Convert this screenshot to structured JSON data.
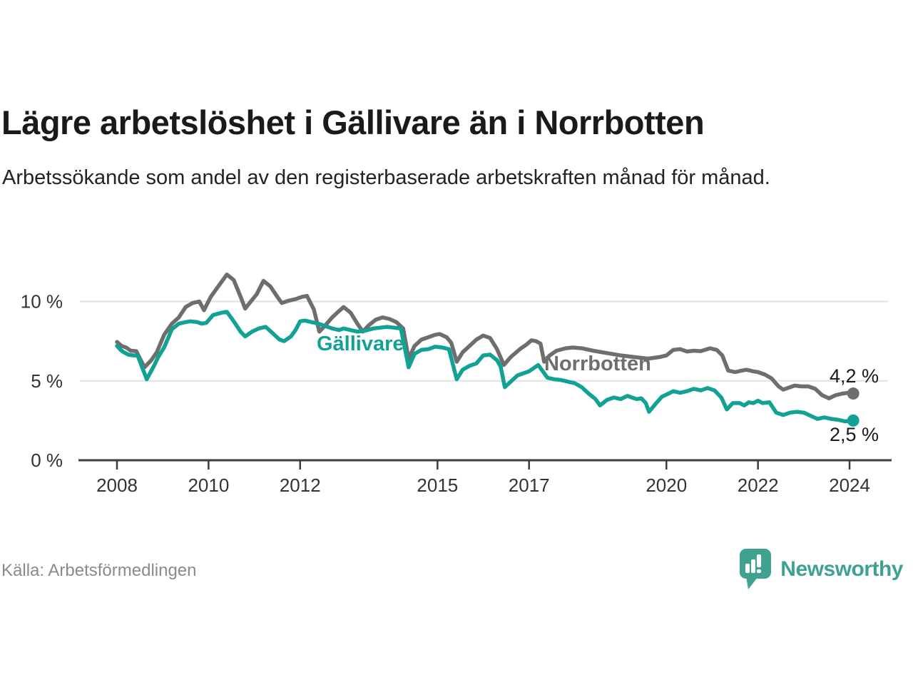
{
  "header": {
    "title": "Lägre arbetslöshet i Gällivare än i Norrbotten",
    "subtitle": "Arbetssökande som andel av den registerbaserade arbetskraften månad för månad."
  },
  "footer": {
    "source": "Källa: Arbetsförmedlingen",
    "brand_name": "Newsworthy",
    "brand_logo_icon": "speech-bubble-bar-chart-icon"
  },
  "colors": {
    "gallivare_line": "#12a195",
    "norrbotten_line": "#6e6e6e",
    "gridline": "#e1e1e1",
    "axis": "#3d3d3d",
    "tick_text": "#333333",
    "end_label_text": "#1a1a1a",
    "source_text": "#8a8a8a",
    "brand_teal": "#3fa291"
  },
  "chart_data": {
    "type": "line",
    "unit": "%",
    "grid": "horizontal-only",
    "legend_position": "inline-labels-on-lines",
    "x_axis": {
      "range": [
        2007.85,
        2024.95
      ],
      "ticks": [
        2008,
        2010,
        2012,
        2015,
        2017,
        2020,
        2022,
        2024
      ],
      "tick_labels": [
        "2008",
        "2010",
        "2012",
        "2015",
        "2017",
        "2020",
        "2022",
        "2024"
      ]
    },
    "y_axis": {
      "range": [
        0,
        11.9
      ],
      "ticks": [
        {
          "value": 0,
          "label": "0 %"
        },
        {
          "value": 5,
          "label": "5 %"
        },
        {
          "value": 10,
          "label": "10 %"
        }
      ]
    },
    "series": [
      {
        "name": "Norrbotten",
        "label_text": "Norrbotten",
        "end_label": "4,2 %",
        "end_value": 4.2,
        "color": "#6e6e6e",
        "points": [
          [
            2008.0,
            7.45
          ],
          [
            2008.1,
            7.2
          ],
          [
            2008.2,
            7.1
          ],
          [
            2008.3,
            6.9
          ],
          [
            2008.42,
            6.87
          ],
          [
            2008.6,
            5.85
          ],
          [
            2008.75,
            6.3
          ],
          [
            2008.87,
            6.8
          ],
          [
            2009.03,
            7.9
          ],
          [
            2009.2,
            8.6
          ],
          [
            2009.35,
            9.0
          ],
          [
            2009.5,
            9.65
          ],
          [
            2009.65,
            9.9
          ],
          [
            2009.8,
            10.0
          ],
          [
            2009.9,
            9.45
          ],
          [
            2010.05,
            10.3
          ],
          [
            2010.25,
            11.1
          ],
          [
            2010.4,
            11.7
          ],
          [
            2010.55,
            11.35
          ],
          [
            2010.7,
            10.3
          ],
          [
            2010.8,
            9.55
          ],
          [
            2010.95,
            10.1
          ],
          [
            2011.05,
            10.45
          ],
          [
            2011.2,
            11.3
          ],
          [
            2011.35,
            10.95
          ],
          [
            2011.5,
            10.3
          ],
          [
            2011.6,
            9.9
          ],
          [
            2011.75,
            10.05
          ],
          [
            2011.9,
            10.15
          ],
          [
            2012.05,
            10.3
          ],
          [
            2012.15,
            10.35
          ],
          [
            2012.3,
            9.5
          ],
          [
            2012.42,
            8.1
          ],
          [
            2012.55,
            8.5
          ],
          [
            2012.7,
            9.0
          ],
          [
            2012.85,
            9.4
          ],
          [
            2012.95,
            9.65
          ],
          [
            2013.1,
            9.3
          ],
          [
            2013.25,
            8.6
          ],
          [
            2013.37,
            8.1
          ],
          [
            2013.5,
            8.5
          ],
          [
            2013.65,
            8.85
          ],
          [
            2013.8,
            9.0
          ],
          [
            2013.95,
            8.9
          ],
          [
            2014.1,
            8.7
          ],
          [
            2014.25,
            8.3
          ],
          [
            2014.37,
            6.4
          ],
          [
            2014.5,
            7.2
          ],
          [
            2014.65,
            7.6
          ],
          [
            2014.8,
            7.75
          ],
          [
            2014.95,
            7.9
          ],
          [
            2015.05,
            7.95
          ],
          [
            2015.2,
            7.75
          ],
          [
            2015.3,
            7.4
          ],
          [
            2015.42,
            6.2
          ],
          [
            2015.55,
            6.8
          ],
          [
            2015.7,
            7.2
          ],
          [
            2015.85,
            7.6
          ],
          [
            2016.0,
            7.85
          ],
          [
            2016.15,
            7.7
          ],
          [
            2016.3,
            7.0
          ],
          [
            2016.45,
            6.0
          ],
          [
            2016.6,
            6.5
          ],
          [
            2016.8,
            7.0
          ],
          [
            2016.95,
            7.3
          ],
          [
            2017.05,
            7.55
          ],
          [
            2017.15,
            7.5
          ],
          [
            2017.25,
            7.35
          ],
          [
            2017.33,
            6.2
          ],
          [
            2017.45,
            6.6
          ],
          [
            2017.6,
            6.9
          ],
          [
            2017.8,
            7.05
          ],
          [
            2017.95,
            7.1
          ],
          [
            2018.15,
            7.05
          ],
          [
            2018.4,
            6.9
          ],
          [
            2018.7,
            6.75
          ],
          [
            2019.0,
            6.6
          ],
          [
            2019.3,
            6.5
          ],
          [
            2019.6,
            6.4
          ],
          [
            2019.85,
            6.5
          ],
          [
            2020.0,
            6.6
          ],
          [
            2020.15,
            6.95
          ],
          [
            2020.3,
            7.0
          ],
          [
            2020.45,
            6.85
          ],
          [
            2020.6,
            6.9
          ],
          [
            2020.75,
            6.87
          ],
          [
            2020.95,
            7.05
          ],
          [
            2021.1,
            6.95
          ],
          [
            2021.22,
            6.6
          ],
          [
            2021.35,
            5.65
          ],
          [
            2021.5,
            5.55
          ],
          [
            2021.65,
            5.65
          ],
          [
            2021.75,
            5.7
          ],
          [
            2021.9,
            5.6
          ],
          [
            2022.0,
            5.55
          ],
          [
            2022.15,
            5.4
          ],
          [
            2022.3,
            5.15
          ],
          [
            2022.45,
            4.65
          ],
          [
            2022.55,
            4.45
          ],
          [
            2022.65,
            4.55
          ],
          [
            2022.8,
            4.7
          ],
          [
            2022.95,
            4.65
          ],
          [
            2023.1,
            4.65
          ],
          [
            2023.25,
            4.5
          ],
          [
            2023.4,
            4.1
          ],
          [
            2023.55,
            3.9
          ],
          [
            2023.7,
            4.1
          ],
          [
            2023.85,
            4.2
          ],
          [
            2024.0,
            4.25
          ],
          [
            2024.08,
            4.2
          ]
        ]
      },
      {
        "name": "Gällivare",
        "label_text": "Gällivare",
        "end_label": "2,5 %",
        "end_value": 2.5,
        "color": "#12a195",
        "points": [
          [
            2008.0,
            7.2
          ],
          [
            2008.08,
            6.95
          ],
          [
            2008.15,
            6.8
          ],
          [
            2008.25,
            6.65
          ],
          [
            2008.35,
            6.6
          ],
          [
            2008.45,
            6.6
          ],
          [
            2008.65,
            5.1
          ],
          [
            2008.8,
            5.9
          ],
          [
            2008.9,
            6.5
          ],
          [
            2009.03,
            7.1
          ],
          [
            2009.2,
            8.25
          ],
          [
            2009.35,
            8.6
          ],
          [
            2009.5,
            8.7
          ],
          [
            2009.6,
            8.75
          ],
          [
            2009.75,
            8.7
          ],
          [
            2009.85,
            8.6
          ],
          [
            2009.95,
            8.65
          ],
          [
            2010.1,
            9.15
          ],
          [
            2010.3,
            9.3
          ],
          [
            2010.4,
            9.35
          ],
          [
            2010.55,
            8.75
          ],
          [
            2010.7,
            8.1
          ],
          [
            2010.8,
            7.8
          ],
          [
            2010.95,
            8.1
          ],
          [
            2011.1,
            8.3
          ],
          [
            2011.25,
            8.4
          ],
          [
            2011.4,
            8.0
          ],
          [
            2011.55,
            7.6
          ],
          [
            2011.65,
            7.5
          ],
          [
            2011.8,
            7.8
          ],
          [
            2011.9,
            8.2
          ],
          [
            2012.0,
            8.75
          ],
          [
            2012.1,
            8.8
          ],
          [
            2012.25,
            8.7
          ],
          [
            2012.4,
            8.6
          ],
          [
            2012.55,
            8.45
          ],
          [
            2012.7,
            8.3
          ],
          [
            2012.85,
            8.2
          ],
          [
            2012.95,
            8.3
          ],
          [
            2013.1,
            8.2
          ],
          [
            2013.25,
            8.1
          ],
          [
            2013.4,
            8.15
          ],
          [
            2013.6,
            8.3
          ],
          [
            2013.75,
            8.35
          ],
          [
            2013.9,
            8.4
          ],
          [
            2014.05,
            8.35
          ],
          [
            2014.2,
            8.3
          ],
          [
            2014.37,
            5.85
          ],
          [
            2014.5,
            6.7
          ],
          [
            2014.65,
            6.95
          ],
          [
            2014.8,
            7.0
          ],
          [
            2014.95,
            7.15
          ],
          [
            2015.1,
            7.1
          ],
          [
            2015.25,
            7.0
          ],
          [
            2015.42,
            5.1
          ],
          [
            2015.55,
            5.7
          ],
          [
            2015.7,
            5.95
          ],
          [
            2015.85,
            6.1
          ],
          [
            2016.0,
            6.6
          ],
          [
            2016.15,
            6.65
          ],
          [
            2016.3,
            6.3
          ],
          [
            2016.38,
            5.9
          ],
          [
            2016.47,
            4.6
          ],
          [
            2016.6,
            4.95
          ],
          [
            2016.75,
            5.35
          ],
          [
            2016.9,
            5.5
          ],
          [
            2017.0,
            5.6
          ],
          [
            2017.1,
            5.8
          ],
          [
            2017.2,
            6.0
          ],
          [
            2017.3,
            5.6
          ],
          [
            2017.4,
            5.2
          ],
          [
            2017.55,
            5.1
          ],
          [
            2017.7,
            5.05
          ],
          [
            2017.85,
            4.95
          ],
          [
            2018.0,
            4.85
          ],
          [
            2018.15,
            4.6
          ],
          [
            2018.3,
            4.2
          ],
          [
            2018.45,
            3.85
          ],
          [
            2018.55,
            3.45
          ],
          [
            2018.7,
            3.8
          ],
          [
            2018.85,
            3.95
          ],
          [
            2019.0,
            3.85
          ],
          [
            2019.15,
            4.05
          ],
          [
            2019.25,
            3.95
          ],
          [
            2019.35,
            3.85
          ],
          [
            2019.45,
            3.9
          ],
          [
            2019.55,
            3.6
          ],
          [
            2019.62,
            3.05
          ],
          [
            2019.75,
            3.5
          ],
          [
            2019.9,
            4.0
          ],
          [
            2020.05,
            4.2
          ],
          [
            2020.15,
            4.35
          ],
          [
            2020.3,
            4.25
          ],
          [
            2020.45,
            4.35
          ],
          [
            2020.6,
            4.5
          ],
          [
            2020.75,
            4.4
          ],
          [
            2020.9,
            4.55
          ],
          [
            2021.05,
            4.4
          ],
          [
            2021.2,
            3.95
          ],
          [
            2021.32,
            3.2
          ],
          [
            2021.45,
            3.6
          ],
          [
            2021.6,
            3.6
          ],
          [
            2021.7,
            3.45
          ],
          [
            2021.8,
            3.65
          ],
          [
            2021.9,
            3.6
          ],
          [
            2022.0,
            3.75
          ],
          [
            2022.1,
            3.6
          ],
          [
            2022.25,
            3.65
          ],
          [
            2022.4,
            3.0
          ],
          [
            2022.55,
            2.85
          ],
          [
            2022.7,
            3.0
          ],
          [
            2022.85,
            3.05
          ],
          [
            2023.0,
            3.0
          ],
          [
            2023.15,
            2.8
          ],
          [
            2023.3,
            2.6
          ],
          [
            2023.45,
            2.7
          ],
          [
            2023.6,
            2.6
          ],
          [
            2023.75,
            2.55
          ],
          [
            2023.9,
            2.45
          ],
          [
            2024.08,
            2.5
          ]
        ]
      }
    ]
  }
}
